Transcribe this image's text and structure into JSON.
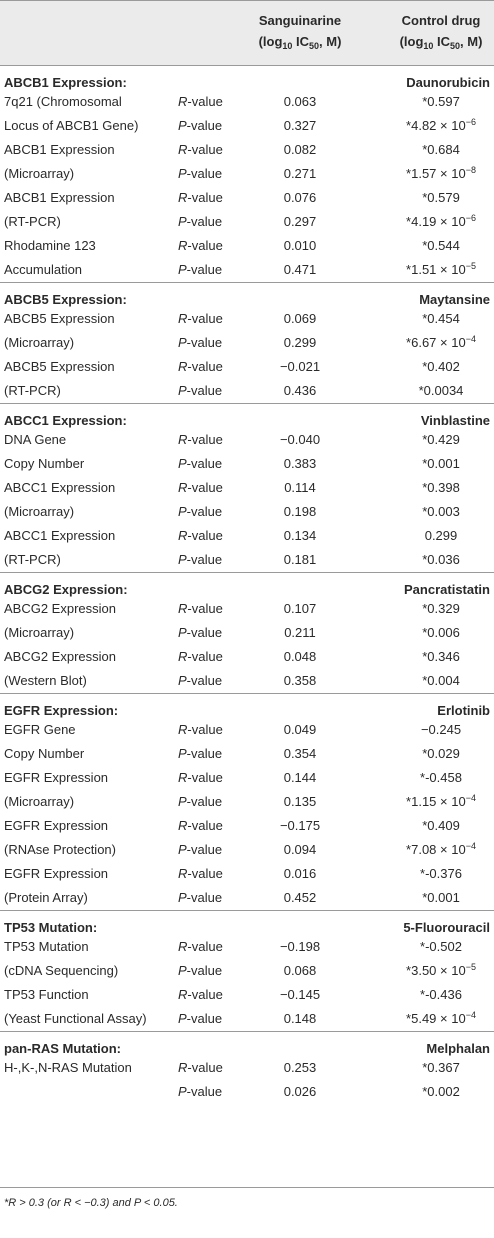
{
  "header": {
    "col1_line1": "Sanguinarine",
    "col1_line2_pre": "(log",
    "col1_line2_sub": "10",
    "col1_line2_post": " IC",
    "col1_line2_sub2": "50",
    "col1_line2_end": ", M)",
    "col2_line1": "Control drug",
    "col2_line2_pre": "(log",
    "col2_line2_sub": "10",
    "col2_line2_post": " IC",
    "col2_line2_sub2": "50",
    "col2_line2_end": ", M)"
  },
  "sections": [
    {
      "title": "ABCB1 Expression:",
      "drug": "Daunorubicin",
      "rows": [
        {
          "label": "7q21 (Chromosomal",
          "stat_letter": "R",
          "stat_rest": "-value",
          "sang": "0.063",
          "ctrl": "*0.597"
        },
        {
          "label": "Locus of ABCB1 Gene)",
          "stat_letter": "P",
          "stat_rest": "-value",
          "sang": "0.327",
          "ctrl": "*4.82 × 10",
          "ctrl_exp": "−6"
        },
        {
          "label": "ABCB1 Expression",
          "stat_letter": "R",
          "stat_rest": "-value",
          "sang": "0.082",
          "ctrl": "*0.684"
        },
        {
          "label": "(Microarray)",
          "stat_letter": "P",
          "stat_rest": "-value",
          "sang": "0.271",
          "ctrl": "*1.57 × 10",
          "ctrl_exp": "−8"
        },
        {
          "label": "ABCB1 Expression",
          "stat_letter": "R",
          "stat_rest": "-value",
          "sang": "0.076",
          "ctrl": "*0.579"
        },
        {
          "label": "(RT-PCR)",
          "stat_letter": "P",
          "stat_rest": "-value",
          "sang": "0.297",
          "ctrl": "*4.19 × 10",
          "ctrl_exp": "−6"
        },
        {
          "label": "Rhodamine 123",
          "stat_letter": "R",
          "stat_rest": "-value",
          "sang": "0.010",
          "ctrl": "*0.544"
        },
        {
          "label": "Accumulation",
          "stat_letter": "P",
          "stat_rest": "-value",
          "sang": "0.471",
          "ctrl": "*1.51 × 10",
          "ctrl_exp": "−5"
        }
      ]
    },
    {
      "title": "ABCB5 Expression:",
      "drug": "Maytansine",
      "rows": [
        {
          "label": "ABCB5 Expression",
          "stat_letter": "R",
          "stat_rest": "-value",
          "sang": "0.069",
          "ctrl": "*0.454"
        },
        {
          "label": "(Microarray)",
          "stat_letter": "P",
          "stat_rest": "-value",
          "sang": "0.299",
          "ctrl": "*6.67 × 10",
          "ctrl_exp": "−4"
        },
        {
          "label": "ABCB5 Expression",
          "stat_letter": "R",
          "stat_rest": "-value",
          "sang": "−0.021",
          "ctrl": "*0.402"
        },
        {
          "label": "(RT-PCR)",
          "stat_letter": "P",
          "stat_rest": "-value",
          "sang": "0.436",
          "ctrl": "*0.0034"
        }
      ]
    },
    {
      "title": "ABCC1 Expression:",
      "drug": "Vinblastine",
      "rows": [
        {
          "label": "DNA Gene",
          "stat_letter": "R",
          "stat_rest": "-value",
          "sang": "−0.040",
          "ctrl": "*0.429"
        },
        {
          "label": "Copy Number",
          "stat_letter": "P",
          "stat_rest": "-value",
          "sang": "0.383",
          "ctrl": "*0.001"
        },
        {
          "label": "ABCC1 Expression",
          "stat_letter": "R",
          "stat_rest": "-value",
          "sang": "0.114",
          "ctrl": "*0.398"
        },
        {
          "label": "(Microarray)",
          "stat_letter": "P",
          "stat_rest": "-value",
          "sang": "0.198",
          "ctrl": "*0.003"
        },
        {
          "label": "ABCC1 Expression",
          "stat_letter": "R",
          "stat_rest": "-value",
          "sang": "0.134",
          "ctrl": "0.299"
        },
        {
          "label": "(RT-PCR)",
          "stat_letter": "P",
          "stat_rest": "-value",
          "sang": "0.181",
          "ctrl": "*0.036"
        }
      ]
    },
    {
      "title": "ABCG2 Expression:",
      "drug": "Pancratistatin",
      "rows": [
        {
          "label": "ABCG2 Expression",
          "stat_letter": "R",
          "stat_rest": "-value",
          "sang": "0.107",
          "ctrl": "*0.329"
        },
        {
          "label": "(Microarray)",
          "stat_letter": "P",
          "stat_rest": "-value",
          "sang": "0.211",
          "ctrl": "*0.006"
        },
        {
          "label": "ABCG2 Expression",
          "stat_letter": "R",
          "stat_rest": "-value",
          "sang": "0.048",
          "ctrl": "*0.346"
        },
        {
          "label": "(Western Blot)",
          "stat_letter": "P",
          "stat_rest": "-value",
          "sang": "0.358",
          "ctrl": "*0.004"
        }
      ]
    },
    {
      "title": "EGFR Expression:",
      "drug": "Erlotinib",
      "rows": [
        {
          "label": "EGFR Gene",
          "stat_letter": "R",
          "stat_rest": "-value",
          "sang": "0.049",
          "ctrl": "−0.245"
        },
        {
          "label": "Copy Number",
          "stat_letter": "P",
          "stat_rest": "-value",
          "sang": "0.354",
          "ctrl": "*0.029"
        },
        {
          "label": "EGFR Expression",
          "stat_letter": "R",
          "stat_rest": "-value",
          "sang": "0.144",
          "ctrl": "*-0.458"
        },
        {
          "label": "(Microarray)",
          "stat_letter": "P",
          "stat_rest": "-value",
          "sang": "0.135",
          "ctrl": "*1.15 × 10",
          "ctrl_exp": "−4"
        },
        {
          "label": "EGFR Expression",
          "stat_letter": "R",
          "stat_rest": "-value",
          "sang": "−0.175",
          "ctrl": "*0.409"
        },
        {
          "label": "(RNAse Protection)",
          "stat_letter": "P",
          "stat_rest": "-value",
          "sang": "0.094",
          "ctrl": "*7.08 × 10",
          "ctrl_exp": "−4"
        },
        {
          "label": "EGFR Expression",
          "stat_letter": "R",
          "stat_rest": "-value",
          "sang": "0.016",
          "ctrl": "*-0.376"
        },
        {
          "label": "(Protein Array)",
          "stat_letter": "P",
          "stat_rest": "-value",
          "sang": "0.452",
          "ctrl": "*0.001"
        }
      ]
    },
    {
      "title": "TP53 Mutation:",
      "drug": "5-Fluorouracil",
      "rows": [
        {
          "label": "TP53 Mutation",
          "stat_letter": "R",
          "stat_rest": "-value",
          "sang": "−0.198",
          "ctrl": "*-0.502"
        },
        {
          "label": "(cDNA Sequencing)",
          "stat_letter": "P",
          "stat_rest": "-value",
          "sang": "0.068",
          "ctrl": "*3.50 × 10",
          "ctrl_exp": "−5"
        },
        {
          "label": "TP53 Function",
          "stat_letter": "R",
          "stat_rest": "-value",
          "sang": "−0.145",
          "ctrl": "*-0.436"
        },
        {
          "label": "(Yeast Functional Assay)",
          "stat_letter": "P",
          "stat_rest": "-value",
          "sang": "0.148",
          "ctrl": "*5.49 × 10",
          "ctrl_exp": "−4"
        }
      ]
    },
    {
      "title": "pan-RAS Mutation:",
      "drug": "Melphalan",
      "rows": [
        {
          "label": "H-,K-,N-RAS Mutation",
          "stat_letter": "R",
          "stat_rest": "-value",
          "sang": "0.253",
          "ctrl": "*0.367"
        },
        {
          "label": "",
          "stat_letter": "P",
          "stat_rest": "-value",
          "sang": "0.026",
          "ctrl": "*0.002"
        }
      ]
    }
  ],
  "footnote": "*R > 0.3 (or R < −0.3) and P < 0.05."
}
